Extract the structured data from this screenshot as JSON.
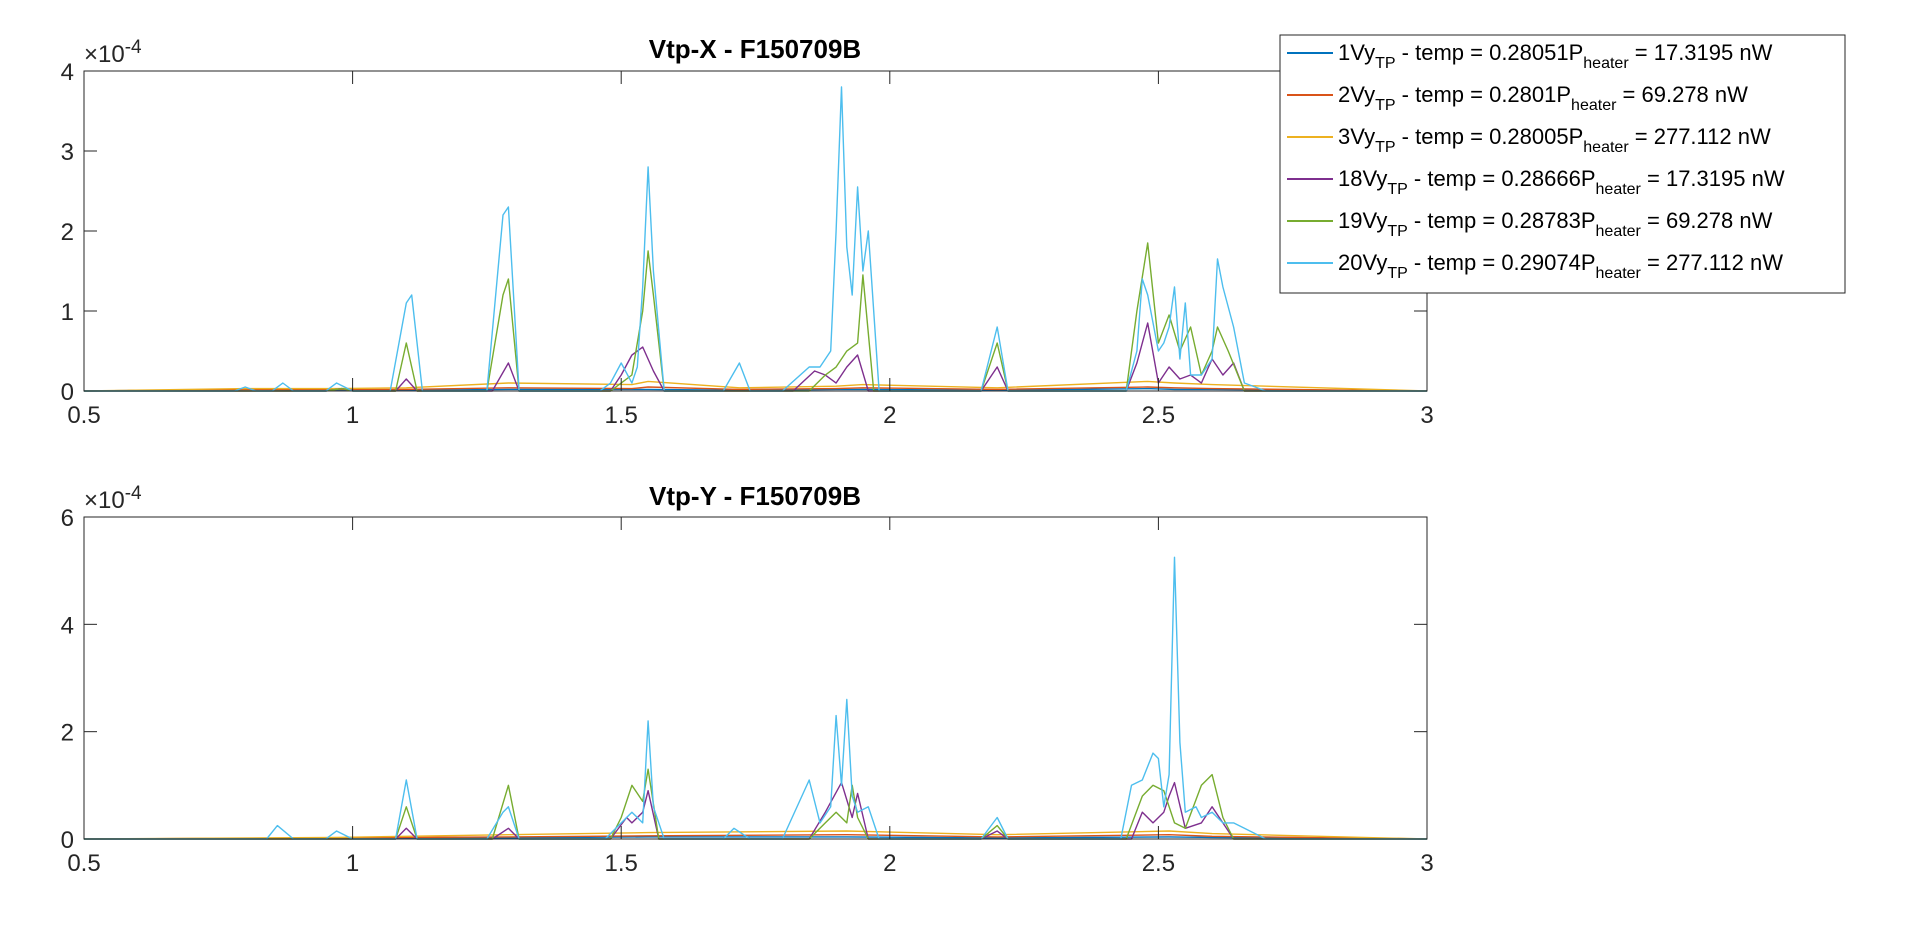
{
  "figure": {
    "background": "#ffffff"
  },
  "chart_data": [
    {
      "type": "line",
      "title": "Vtp-X - F150709B",
      "xlim": [
        0.5,
        3
      ],
      "ylim": [
        0,
        4
      ],
      "xticks": [
        "0.5",
        "1",
        "1.5",
        "2",
        "2.5",
        "3"
      ],
      "yticks": [
        "0",
        "1",
        "2",
        "3",
        "4"
      ],
      "exponent_base": "×10",
      "exponent_power": "-4",
      "grid": false,
      "legend": "top-right",
      "series": [
        {
          "name": "1",
          "color": "#0072BD",
          "x": [
            0.5,
            0.8,
            0.97,
            1.1,
            1.29,
            1.52,
            1.55,
            1.72,
            1.9,
            1.95,
            2.2,
            2.48,
            2.53,
            2.6,
            3.0
          ],
          "y": [
            0,
            0.02,
            0.01,
            0.01,
            0.02,
            0.02,
            0.02,
            0.01,
            0.02,
            0.02,
            0.01,
            0.03,
            0.02,
            0.02,
            0
          ]
        },
        {
          "name": "2",
          "color": "#D95319",
          "x": [
            0.5,
            0.8,
            0.97,
            1.1,
            1.29,
            1.52,
            1.55,
            1.72,
            1.9,
            1.95,
            2.2,
            2.48,
            2.53,
            2.6,
            3.0
          ],
          "y": [
            0,
            0.02,
            0.02,
            0.02,
            0.04,
            0.03,
            0.05,
            0.02,
            0.03,
            0.04,
            0.02,
            0.05,
            0.04,
            0.03,
            0
          ]
        },
        {
          "name": "3",
          "color": "#EDB120",
          "x": [
            0.5,
            0.8,
            0.97,
            1.1,
            1.29,
            1.52,
            1.55,
            1.72,
            1.9,
            1.95,
            2.2,
            2.48,
            2.53,
            2.6,
            3.0
          ],
          "y": [
            0,
            0.03,
            0.03,
            0.04,
            0.1,
            0.08,
            0.12,
            0.04,
            0.06,
            0.08,
            0.04,
            0.12,
            0.1,
            0.08,
            0
          ]
        },
        {
          "name": "18",
          "color": "#7E2F8E",
          "x": [
            0.5,
            0.95,
            0.98,
            1.0,
            1.08,
            1.1,
            1.12,
            1.26,
            1.29,
            1.31,
            1.48,
            1.5,
            1.52,
            1.53,
            1.54,
            1.56,
            1.58,
            1.82,
            1.86,
            1.88,
            1.9,
            1.92,
            1.94,
            1.96,
            2.17,
            2.2,
            2.22,
            2.44,
            2.46,
            2.48,
            2.5,
            2.52,
            2.54,
            2.56,
            2.58,
            2.6,
            2.62,
            2.64,
            2.66,
            3.0
          ],
          "y": [
            0,
            0,
            0.03,
            0,
            0,
            0.15,
            0,
            0,
            0.35,
            0,
            0,
            0.2,
            0.45,
            0.5,
            0.55,
            0.25,
            0,
            0,
            0.25,
            0.2,
            0.1,
            0.3,
            0.45,
            0,
            0,
            0.3,
            0,
            0,
            0.35,
            0.85,
            0.1,
            0.3,
            0.15,
            0.2,
            0.1,
            0.4,
            0.2,
            0.35,
            0,
            0
          ]
        },
        {
          "name": "19",
          "color": "#77AC30",
          "x": [
            0.5,
            0.95,
            0.98,
            1.0,
            1.08,
            1.1,
            1.12,
            1.25,
            1.28,
            1.29,
            1.31,
            1.48,
            1.52,
            1.54,
            1.55,
            1.56,
            1.58,
            1.85,
            1.88,
            1.9,
            1.92,
            1.94,
            1.95,
            1.97,
            2.17,
            2.2,
            2.22,
            2.44,
            2.46,
            2.48,
            2.5,
            2.52,
            2.54,
            2.56,
            2.58,
            2.6,
            2.61,
            2.63,
            2.66,
            3.0
          ],
          "y": [
            0,
            0,
            0.03,
            0,
            0,
            0.6,
            0,
            0,
            1.2,
            1.4,
            0,
            0,
            0.2,
            1.0,
            1.75,
            1.2,
            0,
            0,
            0.2,
            0.3,
            0.5,
            0.6,
            1.45,
            0,
            0,
            0.6,
            0,
            0,
            1.0,
            1.85,
            0.6,
            0.95,
            0.5,
            0.8,
            0.2,
            0.5,
            0.8,
            0.5,
            0,
            0
          ]
        },
        {
          "name": "20",
          "color": "#4DBEEE",
          "x": [
            0.5,
            0.78,
            0.8,
            0.82,
            0.85,
            0.87,
            0.89,
            0.95,
            0.97,
            1.0,
            1.07,
            1.1,
            1.11,
            1.13,
            1.25,
            1.28,
            1.29,
            1.31,
            1.46,
            1.48,
            1.5,
            1.52,
            1.53,
            1.54,
            1.55,
            1.56,
            1.58,
            1.69,
            1.72,
            1.74,
            1.8,
            1.85,
            1.87,
            1.89,
            1.9,
            1.91,
            1.92,
            1.93,
            1.94,
            1.95,
            1.96,
            1.98,
            2.17,
            2.2,
            2.22,
            2.44,
            2.46,
            2.47,
            2.48,
            2.5,
            2.51,
            2.52,
            2.53,
            2.54,
            2.55,
            2.56,
            2.58,
            2.6,
            2.61,
            2.62,
            2.64,
            2.66,
            2.7,
            3.0
          ],
          "y": [
            0,
            0,
            0.05,
            0,
            0,
            0.1,
            0,
            0,
            0.1,
            0,
            0,
            1.1,
            1.2,
            0,
            0,
            2.2,
            2.3,
            0,
            0,
            0.1,
            0.35,
            0.1,
            0.3,
            1.3,
            2.8,
            1.5,
            0,
            0,
            0.35,
            0,
            0,
            0.3,
            0.3,
            0.5,
            2.0,
            3.8,
            1.8,
            1.2,
            2.55,
            1.5,
            2.0,
            0,
            0,
            0.8,
            0,
            0,
            0.5,
            1.4,
            1.2,
            0.5,
            0.6,
            0.8,
            1.3,
            0.4,
            1.1,
            0.2,
            0.2,
            0.4,
            1.65,
            1.3,
            0.8,
            0.1,
            0,
            0
          ]
        }
      ]
    },
    {
      "type": "line",
      "title": "Vtp-Y - F150709B",
      "xlim": [
        0.5,
        3
      ],
      "ylim": [
        0,
        6
      ],
      "xticks": [
        "0.5",
        "1",
        "1.5",
        "2",
        "2.5",
        "3"
      ],
      "yticks": [
        "0",
        "2",
        "4",
        "6"
      ],
      "exponent_base": "×10",
      "exponent_power": "-4",
      "grid": false,
      "series": [
        {
          "name": "1",
          "color": "#0072BD",
          "x": [
            0.5,
            0.97,
            1.1,
            1.29,
            1.55,
            1.92,
            2.2,
            2.52,
            2.6,
            3.0
          ],
          "y": [
            0,
            0.01,
            0.02,
            0.02,
            0.04,
            0.04,
            0.02,
            0.04,
            0.03,
            0
          ]
        },
        {
          "name": "2",
          "color": "#D95319",
          "x": [
            0.5,
            0.97,
            1.1,
            1.29,
            1.55,
            1.92,
            2.2,
            2.52,
            2.6,
            3.0
          ],
          "y": [
            0,
            0.02,
            0.03,
            0.04,
            0.06,
            0.08,
            0.04,
            0.08,
            0.05,
            0
          ]
        },
        {
          "name": "3",
          "color": "#EDB120",
          "x": [
            0.5,
            0.97,
            1.1,
            1.29,
            1.55,
            1.92,
            2.2,
            2.52,
            2.6,
            3.0
          ],
          "y": [
            0,
            0.03,
            0.05,
            0.08,
            0.12,
            0.15,
            0.08,
            0.15,
            0.1,
            0
          ]
        },
        {
          "name": "18",
          "color": "#7E2F8E",
          "x": [
            0.5,
            1.08,
            1.1,
            1.12,
            1.26,
            1.29,
            1.31,
            1.48,
            1.51,
            1.52,
            1.54,
            1.55,
            1.57,
            1.85,
            1.88,
            1.91,
            1.93,
            1.94,
            1.96,
            2.17,
            2.2,
            2.22,
            2.45,
            2.47,
            2.49,
            2.51,
            2.52,
            2.53,
            2.55,
            2.58,
            2.6,
            2.62,
            2.64,
            3.0
          ],
          "y": [
            0,
            0,
            0.2,
            0,
            0,
            0.2,
            0,
            0,
            0.4,
            0.3,
            0.5,
            0.9,
            0,
            0,
            0.5,
            1.05,
            0.4,
            0.85,
            0,
            0,
            0.15,
            0,
            0,
            0.5,
            0.3,
            0.5,
            0.8,
            1.05,
            0.2,
            0.3,
            0.6,
            0.3,
            0,
            0
          ]
        },
        {
          "name": "19",
          "color": "#77AC30",
          "x": [
            0.5,
            1.08,
            1.1,
            1.12,
            1.26,
            1.29,
            1.31,
            1.48,
            1.5,
            1.52,
            1.54,
            1.55,
            1.57,
            1.85,
            1.88,
            1.9,
            1.92,
            1.93,
            1.94,
            1.96,
            2.17,
            2.2,
            2.22,
            2.44,
            2.47,
            2.49,
            2.51,
            2.53,
            2.55,
            2.58,
            2.6,
            2.62,
            2.64,
            3.0
          ],
          "y": [
            0,
            0,
            0.6,
            0,
            0,
            1.0,
            0,
            0,
            0.4,
            1.0,
            0.7,
            1.3,
            0,
            0,
            0.3,
            0.5,
            0.3,
            1.0,
            0.4,
            0,
            0,
            0.25,
            0,
            0,
            0.8,
            1.0,
            0.9,
            0.3,
            0.2,
            1.0,
            1.2,
            0.4,
            0,
            0
          ]
        },
        {
          "name": "20",
          "color": "#4DBEEE",
          "x": [
            0.5,
            0.84,
            0.86,
            0.89,
            0.95,
            0.97,
            1.0,
            1.08,
            1.1,
            1.12,
            1.25,
            1.28,
            1.29,
            1.31,
            1.47,
            1.5,
            1.52,
            1.53,
            1.54,
            1.55,
            1.56,
            1.58,
            1.69,
            1.71,
            1.74,
            1.8,
            1.85,
            1.87,
            1.89,
            1.9,
            1.91,
            1.92,
            1.93,
            1.94,
            1.96,
            1.98,
            2.17,
            2.2,
            2.22,
            2.43,
            2.45,
            2.47,
            2.49,
            2.5,
            2.51,
            2.52,
            2.53,
            2.54,
            2.55,
            2.57,
            2.58,
            2.6,
            2.62,
            2.64,
            2.66,
            2.7,
            3.0
          ],
          "y": [
            0,
            0,
            0.25,
            0,
            0,
            0.15,
            0,
            0,
            1.1,
            0,
            0,
            0.5,
            0.6,
            0,
            0,
            0.3,
            0.5,
            0.4,
            0.3,
            2.2,
            0.6,
            0,
            0,
            0.2,
            0,
            0,
            1.1,
            0.3,
            0.6,
            2.3,
            1.0,
            2.6,
            0.8,
            0.5,
            0.6,
            0,
            0,
            0.4,
            0,
            0,
            1.0,
            1.1,
            1.6,
            1.5,
            0.6,
            1.2,
            5.25,
            1.8,
            0.5,
            0.6,
            0.4,
            0.5,
            0.3,
            0.3,
            0.2,
            0,
            0
          ]
        }
      ]
    }
  ],
  "legend": {
    "entries": [
      {
        "num": "1",
        "sym": "Vy",
        "sub": "TP",
        "mid": " - temp = 0.28051P",
        "sub2": "heater",
        "tail": " = 17.3195 nW",
        "color": "#0072BD"
      },
      {
        "num": "2",
        "sym": "Vy",
        "sub": "TP",
        "mid": " - temp = 0.2801P",
        "sub2": "heater",
        "tail": " = 69.278 nW",
        "color": "#D95319"
      },
      {
        "num": "3",
        "sym": "Vy",
        "sub": "TP",
        "mid": " - temp = 0.28005P",
        "sub2": "heater",
        "tail": " = 277.112 nW",
        "color": "#EDB120"
      },
      {
        "num": "18",
        "sym": "Vy",
        "sub": "TP",
        "mid": " - temp = 0.28666P",
        "sub2": "heater",
        "tail": " = 17.3195 nW",
        "color": "#7E2F8E"
      },
      {
        "num": "19",
        "sym": "Vy",
        "sub": "TP",
        "mid": " - temp = 0.28783P",
        "sub2": "heater",
        "tail": " = 69.278 nW",
        "color": "#77AC30"
      },
      {
        "num": "20",
        "sym": "Vy",
        "sub": "TP",
        "mid": " - temp = 0.29074P",
        "sub2": "heater",
        "tail": " = 277.112 nW",
        "color": "#4DBEEE"
      }
    ]
  }
}
